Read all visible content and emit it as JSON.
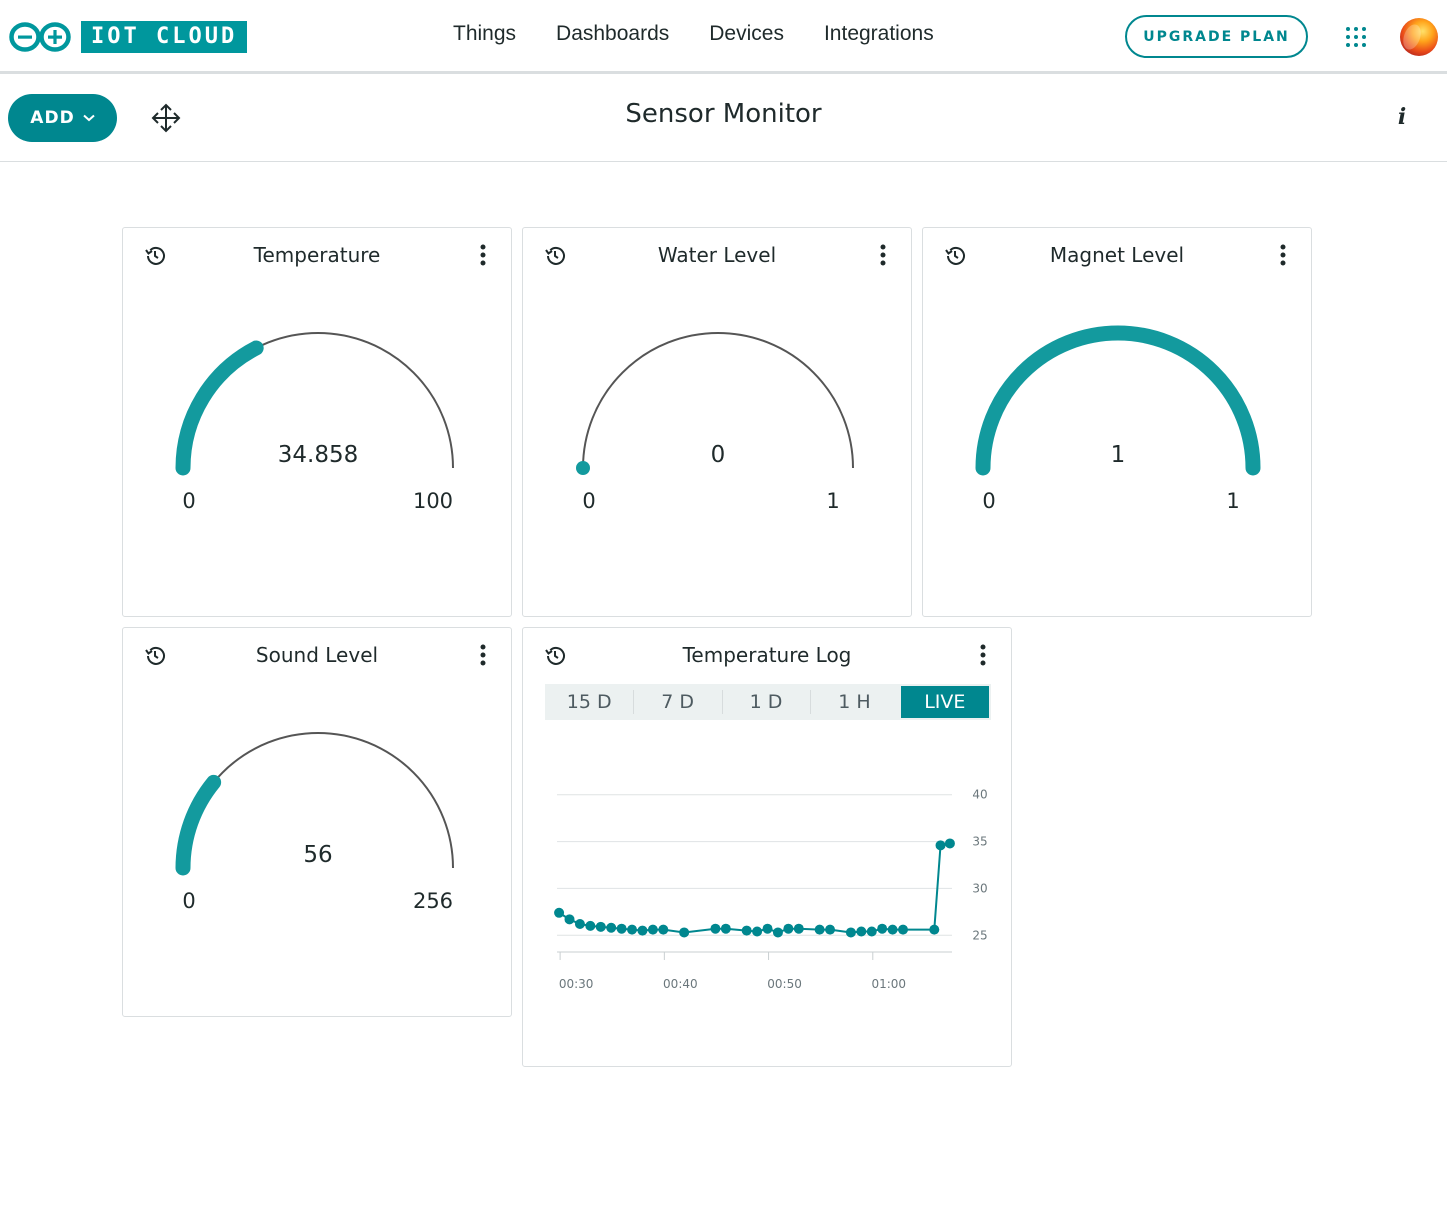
{
  "brand": {
    "logo_text": "IOT CLOUD"
  },
  "nav": {
    "items": [
      "Things",
      "Dashboards",
      "Devices",
      "Integrations"
    ],
    "upgrade_label": "UPGRADE PLAN"
  },
  "toolbar": {
    "add_label": "ADD",
    "title": "Sensor Monitor",
    "info_label": "i"
  },
  "colors": {
    "accent": "#00878f",
    "gauge_fill": "#139a9e",
    "track": "#555555",
    "brand": "#00979d"
  },
  "widgets": {
    "temperature": {
      "title": "Temperature",
      "value": "34.858",
      "min": "0",
      "max": "100",
      "fraction": 0.34858
    },
    "water": {
      "title": "Water Level",
      "value": "0",
      "min": "0",
      "max": "1",
      "fraction": 0
    },
    "magnet": {
      "title": "Magnet Level",
      "value": "1",
      "min": "0",
      "max": "1",
      "fraction": 1
    },
    "sound": {
      "title": "Sound Level",
      "value": "56",
      "min": "0",
      "max": "256",
      "fraction": 0.21875
    },
    "log": {
      "title": "Temperature Log",
      "ranges": [
        "15 D",
        "7 D",
        "1 D",
        "1 H",
        "LIVE"
      ],
      "active_range": "LIVE"
    }
  },
  "chart_data": {
    "type": "line",
    "title": "",
    "xlabel": "",
    "ylabel": "",
    "ylim": [
      23,
      42
    ],
    "yticks": [
      25,
      30,
      35,
      40
    ],
    "xticks": [
      "00:30",
      "00:40",
      "00:50",
      "01:00"
    ],
    "x_minutes_range": [
      29.7,
      67.6
    ],
    "grid": true,
    "series": [
      {
        "values": [
          [
            29.9,
            27.4
          ],
          [
            30.9,
            26.7
          ],
          [
            31.9,
            26.2
          ],
          [
            32.9,
            26.0
          ],
          [
            33.9,
            25.9
          ],
          [
            34.9,
            25.8
          ],
          [
            35.9,
            25.7
          ],
          [
            36.9,
            25.6
          ],
          [
            37.9,
            25.5
          ],
          [
            38.9,
            25.6
          ],
          [
            39.9,
            25.6
          ],
          [
            41.9,
            25.3
          ],
          [
            44.9,
            25.7
          ],
          [
            45.9,
            25.7
          ],
          [
            47.9,
            25.5
          ],
          [
            48.9,
            25.4
          ],
          [
            49.9,
            25.7
          ],
          [
            50.9,
            25.3
          ],
          [
            51.9,
            25.7
          ],
          [
            52.9,
            25.7
          ],
          [
            54.9,
            25.6
          ],
          [
            55.9,
            25.6
          ],
          [
            57.9,
            25.3
          ],
          [
            58.9,
            25.4
          ],
          [
            59.9,
            25.4
          ],
          [
            60.9,
            25.7
          ],
          [
            61.9,
            25.6
          ],
          [
            62.9,
            25.6
          ],
          [
            65.9,
            25.6
          ],
          [
            66.5,
            34.6
          ],
          [
            67.4,
            34.8
          ]
        ]
      }
    ]
  }
}
